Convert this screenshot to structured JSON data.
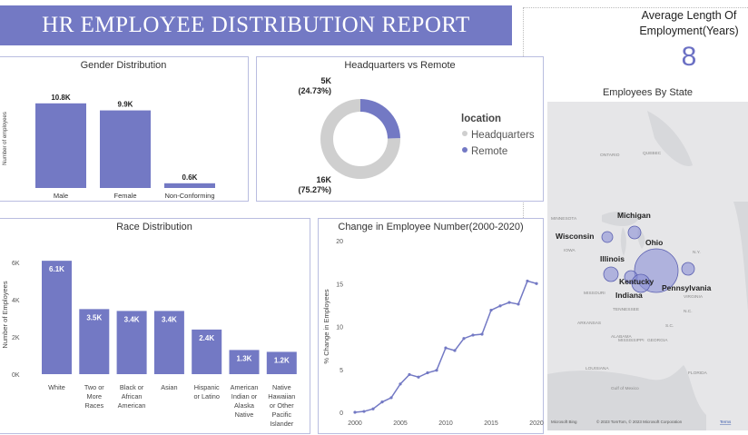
{
  "report_title": "HR EMPLOYEE DISTRIBUTION REPORT",
  "avg_length": {
    "title_line1": "Average Length Of",
    "title_line2": "Employment(Years)",
    "value": "8"
  },
  "colors": {
    "accent": "#7379c4",
    "bar": "#7379c4",
    "donut_gray": "#cfcfcf",
    "map_bubble": "#8a8fd6"
  },
  "chart_data": [
    {
      "type": "bar",
      "title": "Gender Distribution",
      "ylabel": "Number of employees",
      "categories": [
        "Male",
        "Female",
        "Non-Conforming"
      ],
      "values": [
        10.8,
        9.9,
        0.6
      ],
      "labels": [
        "10.8K",
        "9.9K",
        "0.6K"
      ],
      "ylim": [
        0,
        12
      ]
    },
    {
      "type": "pie",
      "title": "Headquarters vs Remote",
      "legend_title": "location",
      "categories": [
        "Headquarters",
        "Remote"
      ],
      "values": [
        75.27,
        24.73
      ],
      "value_labels": [
        "16K",
        "5K"
      ],
      "pct_labels": [
        "(75.27%)",
        "(24.73%)"
      ],
      "colors": [
        "#cfcfcf",
        "#7379c4"
      ]
    },
    {
      "type": "bar",
      "title": "Race Distribution",
      "ylabel": "Number of Employees",
      "categories": [
        [
          "White"
        ],
        [
          "Two or",
          "More",
          "Races"
        ],
        [
          "Black or",
          "African",
          "American"
        ],
        [
          "Asian"
        ],
        [
          "Hispanic",
          "or Latino"
        ],
        [
          "American",
          "Indian or",
          "Alaska",
          "Native"
        ],
        [
          "Native",
          "Hawaiian",
          "or Other",
          "Pacific",
          "Islander"
        ]
      ],
      "values": [
        6.1,
        3.5,
        3.4,
        3.4,
        2.4,
        1.3,
        1.2
      ],
      "labels": [
        "6.1K",
        "3.5K",
        "3.4K",
        "3.4K",
        "2.4K",
        "1.3K",
        "1.2K"
      ],
      "yticks": [
        "0K",
        "2K",
        "4K",
        "6K"
      ],
      "ylim": [
        0,
        6.5
      ]
    },
    {
      "type": "line",
      "title": "Change in Employee Number(2000-2020)",
      "ylabel": "% Change in Employees",
      "x": [
        2000,
        2001,
        2002,
        2003,
        2004,
        2005,
        2006,
        2007,
        2008,
        2009,
        2010,
        2011,
        2012,
        2013,
        2014,
        2015,
        2016,
        2017,
        2018,
        2019,
        2020
      ],
      "y": [
        0,
        0.1,
        0.4,
        1.2,
        1.7,
        3.3,
        4.4,
        4.1,
        4.6,
        4.9,
        7.5,
        7.2,
        8.6,
        9.0,
        9.1,
        11.9,
        12.4,
        12.8,
        12.6,
        15.3,
        15.0
      ],
      "xticks": [
        "2000",
        "2005",
        "2010",
        "2015",
        "2020"
      ],
      "yticks": [
        "0",
        "5",
        "10",
        "15",
        "20"
      ],
      "xlim": [
        2000,
        2020
      ],
      "ylim": [
        0,
        20
      ]
    }
  ],
  "map": {
    "title": "Employees By State",
    "states": [
      "Michigan",
      "Wisconsin",
      "Ohio",
      "Illinois",
      "Kentucky",
      "Indiana",
      "Pennsylvania"
    ],
    "region_labels": [
      "ONTARIO",
      "QUEBEC",
      "MINNESOTA",
      "IOWA",
      "MISSOURI",
      "ARKANSAS",
      "MISSISSIPPI",
      "ALABAMA",
      "GEORGIA",
      "TENNESSEE",
      "VIRGINIA",
      "N.C.",
      "S.C.",
      "N.Y.",
      "LOUISIANA",
      "FLORIDA",
      "Gulf of Mexico"
    ],
    "attribution": "© 2023 TomTom, © 2023 Microsoft Corporation",
    "terms": "Terms",
    "bing": "Microsoft Bing"
  }
}
